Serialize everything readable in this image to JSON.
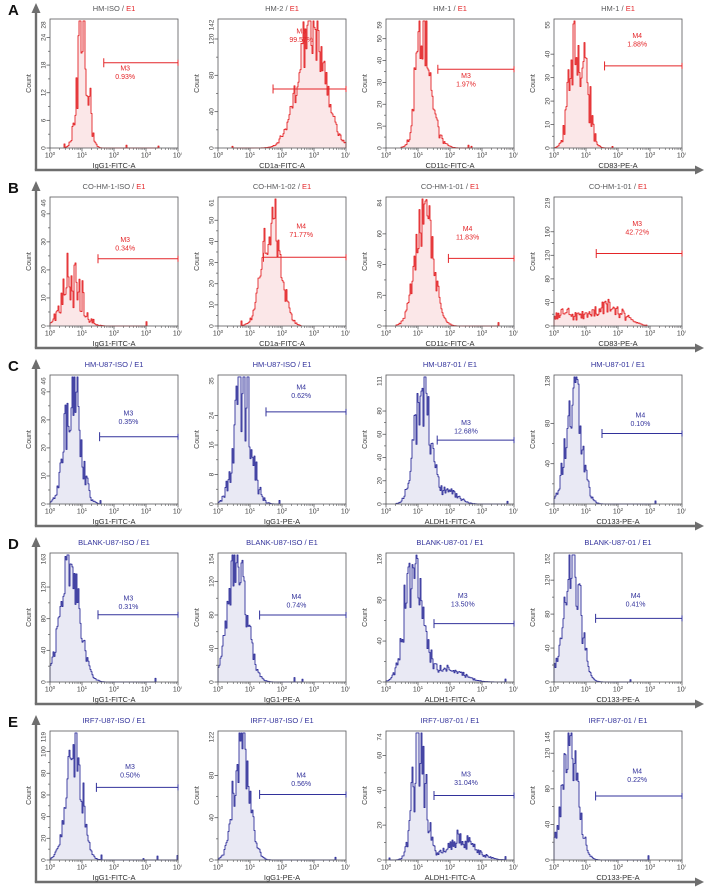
{
  "figure": {
    "row_letters": [
      "A",
      "B",
      "C",
      "D",
      "E"
    ]
  },
  "colors": {
    "red_stroke": "#e42528",
    "red_fill": "#fbe7e8",
    "red_title_name": "#58595b",
    "navy_stroke": "#32329b",
    "navy_fill": "#e9e9f4",
    "panel_frame": "#58595b",
    "row_axis": "#6e6e6e",
    "tick_text": "#3f3f3f"
  },
  "chart_data": {
    "type": "bar",
    "subtype": "flow-cytometry-histogram-grid",
    "title": "Flow cytometry histograms, 5 rows (A-E) x 4 panels",
    "x_scale": "log10",
    "x_range_log10": [
      0,
      4
    ],
    "x_tick_labels": [
      "10^0",
      "10^1",
      "10^2",
      "10^3",
      "10^4"
    ],
    "y_axis_label": "Count",
    "grid": false,
    "rows": [
      {
        "letter": "A",
        "color": "red",
        "panels": [
          {
            "title": "HM-ISO",
            "title_suffix": "E1",
            "x_label": "IgG1-FITC-A",
            "y_max": 28,
            "y_ticks": [
              0,
              6,
              12,
              18,
              24
            ],
            "gate": {
              "name": "M3",
              "percent": "0.93%",
              "level": 18.5,
              "from_log10": 1.68,
              "to_log10": 4,
              "label_x_log10": 2.35,
              "label_y": 16.8
            },
            "distribution": {
              "components": [
                {
                  "c": 1.02,
                  "s": 0.16,
                  "h": 25
                }
              ],
              "noise": 0.45,
              "seed": 7919
            }
          },
          {
            "title": "HM-2",
            "title_suffix": "E1",
            "x_label": "CD1a-FITC-A",
            "y_max": 142,
            "y_ticks": [
              0,
              40,
              80,
              120
            ],
            "gate": {
              "name": "M3",
              "percent": "99.57%",
              "level": 65,
              "from_log10": 1.72,
              "to_log10": 4,
              "label_x_log10": 2.6,
              "label_y": 126
            },
            "distribution": {
              "components": [
                {
                  "c": 2.92,
                  "s": 0.42,
                  "h": 128
                }
              ],
              "noise": 0.22,
              "seed": 15838
            }
          },
          {
            "title": "HM-1",
            "title_suffix": "E1",
            "x_label": "CD11c-FITC-A",
            "y_max": 59,
            "y_ticks": [
              0,
              10,
              20,
              30,
              40,
              50
            ],
            "gate": {
              "name": "M3",
              "percent": "1.97%",
              "level": 36,
              "from_log10": 1.62,
              "to_log10": 4,
              "label_x_log10": 2.5,
              "label_y": 32
            },
            "distribution": {
              "components": [
                {
                  "c": 1.12,
                  "s": 0.17,
                  "h": 52
                },
                {
                  "c": 1.3,
                  "s": 0.28,
                  "h": 16
                }
              ],
              "noise": 0.4,
              "seed": 23757
            }
          },
          {
            "title": "HM-1",
            "title_suffix": "E1",
            "x_label": "CD83-PE-A",
            "y_max": 55,
            "y_ticks": [
              0,
              10,
              20,
              30,
              40
            ],
            "gate": {
              "name": "M4",
              "percent": "1.88%",
              "level": 35,
              "from_log10": 1.58,
              "to_log10": 4,
              "label_x_log10": 2.6,
              "label_y": 47
            },
            "distribution": {
              "components": [
                {
                  "c": 0.62,
                  "s": 0.17,
                  "h": 46
                },
                {
                  "c": 0.95,
                  "s": 0.18,
                  "h": 25
                }
              ],
              "noise": 0.5,
              "seed": 31676
            }
          }
        ]
      },
      {
        "letter": "B",
        "color": "red",
        "panels": [
          {
            "title": "CO-HM-1-ISO",
            "title_suffix": "E1",
            "x_label": "IgG1-FITC-A",
            "y_max": 46,
            "y_ticks": [
              0,
              10,
              20,
              30,
              40
            ],
            "gate": {
              "name": "M3",
              "percent": "0.34%",
              "level": 24,
              "from_log10": 1.5,
              "to_log10": 4,
              "label_x_log10": 2.35,
              "label_y": 30
            },
            "distribution": {
              "components": [
                {
                  "c": 0.68,
                  "s": 0.3,
                  "h": 16
                }
              ],
              "noise": 0.6,
              "seed": 39595
            }
          },
          {
            "title": "CO-HM-1-02",
            "title_suffix": "E1",
            "x_label": "CD1a-FITC-A",
            "y_max": 61,
            "y_ticks": [
              0,
              10,
              20,
              30,
              40,
              50
            ],
            "gate": {
              "name": "M4",
              "percent": "71.77%",
              "level": 32.5,
              "from_log10": 1.42,
              "to_log10": 4,
              "label_x_log10": 2.6,
              "label_y": 46
            },
            "distribution": {
              "components": [
                {
                  "c": 1.68,
                  "s": 0.28,
                  "h": 53
                }
              ],
              "noise": 0.3,
              "seed": 47514
            }
          },
          {
            "title": "CO-HM-1-01",
            "title_suffix": "E1",
            "x_label": "CD11c-FITC-A",
            "y_max": 84,
            "y_ticks": [
              0,
              20,
              40,
              60
            ],
            "gate": {
              "name": "M4",
              "percent": "11.83%",
              "level": 44,
              "from_log10": 1.95,
              "to_log10": 4,
              "label_x_log10": 2.55,
              "label_y": 62
            },
            "distribution": {
              "components": [
                {
                  "c": 1.2,
                  "s": 0.28,
                  "h": 72
                }
              ],
              "noise": 0.28,
              "seed": 55433
            }
          },
          {
            "title": "CO-HM-1-01",
            "title_suffix": "E1",
            "x_label": "CD83-PE-A",
            "y_max": 219,
            "y_ticks": [
              0,
              40,
              80,
              120,
              160
            ],
            "gate": {
              "name": "M3",
              "percent": "42.72%",
              "level": 123,
              "from_log10": 1.32,
              "to_log10": 4,
              "label_x_log10": 2.6,
              "label_y": 170
            },
            "distribution": {
              "components": [
                {
                  "c": 0.4,
                  "s": 0.5,
                  "h": 20
                },
                {
                  "c": 1.75,
                  "s": 0.45,
                  "h": 30
                }
              ],
              "noise": 0.5,
              "seed": 63352
            }
          }
        ]
      },
      {
        "letter": "C",
        "color": "navy",
        "panels": [
          {
            "title": "HM-U87-ISO",
            "title_suffix": "E1",
            "x_label": "IgG1-FITC-A",
            "y_max": 46,
            "y_ticks": [
              0,
              10,
              20,
              30,
              40
            ],
            "gate": {
              "name": "M3",
              "percent": "0.35%",
              "level": 24,
              "from_log10": 1.55,
              "to_log10": 4,
              "label_x_log10": 2.45,
              "label_y": 31.5
            },
            "distribution": {
              "components": [
                {
                  "c": 0.72,
                  "s": 0.24,
                  "h": 40
                }
              ],
              "noise": 0.45,
              "seed": 71271
            }
          },
          {
            "title": "HM-U87-ISO",
            "title_suffix": "E1",
            "x_label": "IgG1-PE-A",
            "y_max": 35,
            "y_ticks": [
              0,
              8,
              16,
              24
            ],
            "gate": {
              "name": "M4",
              "percent": "0.62%",
              "level": 25,
              "from_log10": 1.5,
              "to_log10": 4,
              "label_x_log10": 2.6,
              "label_y": 31
            },
            "distribution": {
              "components": [
                {
                  "c": 0.78,
                  "s": 0.26,
                  "h": 30
                }
              ],
              "noise": 0.5,
              "seed": 79190
            }
          },
          {
            "title": "HM-U87-01",
            "title_suffix": "E1",
            "x_label": "ALDH1-FITC-A",
            "y_max": 111,
            "y_ticks": [
              0,
              20,
              40,
              60,
              80
            ],
            "gate": {
              "name": "M3",
              "percent": "12.68%",
              "level": 55,
              "from_log10": 1.6,
              "to_log10": 4,
              "label_x_log10": 2.5,
              "label_y": 68
            },
            "distribution": {
              "components": [
                {
                  "c": 1.15,
                  "s": 0.25,
                  "h": 100
                },
                {
                  "c": 2.0,
                  "s": 0.28,
                  "h": 10
                }
              ],
              "noise": 0.35,
              "seed": 87109
            }
          },
          {
            "title": "HM-U87-01",
            "title_suffix": "E1",
            "x_label": "CD133-PE-A",
            "y_max": 128,
            "y_ticks": [
              0,
              40,
              80
            ],
            "gate": {
              "name": "M4",
              "percent": "0.10%",
              "level": 70,
              "from_log10": 1.5,
              "to_log10": 4,
              "label_x_log10": 2.7,
              "label_y": 86
            },
            "distribution": {
              "components": [
                {
                  "c": 0.62,
                  "s": 0.24,
                  "h": 112
                }
              ],
              "noise": 0.3,
              "seed": 95028
            }
          }
        ]
      },
      {
        "letter": "D",
        "color": "navy",
        "panels": [
          {
            "title": "BLANK-U87-ISO",
            "title_suffix": "E1",
            "x_label": "IgG1-FITC-A",
            "y_max": 163,
            "y_ticks": [
              0,
              40,
              80,
              120
            ],
            "gate": {
              "name": "M3",
              "percent": "0.31%",
              "level": 85,
              "from_log10": 1.5,
              "to_log10": 4,
              "label_x_log10": 2.45,
              "label_y": 103
            },
            "distribution": {
              "components": [
                {
                  "c": 0.62,
                  "s": 0.3,
                  "h": 146
                }
              ],
              "noise": 0.22,
              "seed": 102947
            }
          },
          {
            "title": "BLANK-U87-ISO",
            "title_suffix": "E1",
            "x_label": "IgG1-PE-A",
            "y_max": 154,
            "y_ticks": [
              0,
              40,
              80,
              120
            ],
            "gate": {
              "name": "M4",
              "percent": "0.74%",
              "level": 80,
              "from_log10": 1.3,
              "to_log10": 4,
              "label_x_log10": 2.45,
              "label_y": 99
            },
            "distribution": {
              "components": [
                {
                  "c": 0.6,
                  "s": 0.3,
                  "h": 136
                }
              ],
              "noise": 0.25,
              "seed": 110866
            }
          },
          {
            "title": "BLANK-U87-01",
            "title_suffix": "E1",
            "x_label": "ALDH1-FITC-A",
            "y_max": 126,
            "y_ticks": [
              0,
              40,
              80
            ],
            "gate": {
              "name": "M3",
              "percent": "13.50%",
              "level": 57,
              "from_log10": 1.5,
              "to_log10": 4,
              "label_x_log10": 2.4,
              "label_y": 82
            },
            "distribution": {
              "components": [
                {
                  "c": 0.88,
                  "s": 0.28,
                  "h": 110
                },
                {
                  "c": 1.95,
                  "s": 0.45,
                  "h": 13
                }
              ],
              "noise": 0.3,
              "seed": 118785
            }
          },
          {
            "title": "BLANK-U87-01",
            "title_suffix": "E1",
            "x_label": "CD133-PE-A",
            "y_max": 152,
            "y_ticks": [
              0,
              40,
              80,
              120
            ],
            "gate": {
              "name": "M4",
              "percent": "0.41%",
              "level": 75,
              "from_log10": 1.3,
              "to_log10": 4,
              "label_x_log10": 2.55,
              "label_y": 99
            },
            "distribution": {
              "components": [
                {
                  "c": 0.55,
                  "s": 0.26,
                  "h": 135
                }
              ],
              "noise": 0.28,
              "seed": 126704
            }
          }
        ]
      },
      {
        "letter": "E",
        "color": "navy",
        "panels": [
          {
            "title": "IRF7-U87-ISO",
            "title_suffix": "E1",
            "x_label": "IgG1-FITC-A",
            "y_max": 119,
            "y_ticks": [
              0,
              20,
              40,
              60,
              80,
              100
            ],
            "gate": {
              "name": "M3",
              "percent": "0.50%",
              "level": 67,
              "from_log10": 1.45,
              "to_log10": 4,
              "label_x_log10": 2.5,
              "label_y": 84
            },
            "distribution": {
              "components": [
                {
                  "c": 0.75,
                  "s": 0.24,
                  "h": 106
                }
              ],
              "noise": 0.28,
              "seed": 134623
            }
          },
          {
            "title": "IRF7-U87-ISO",
            "title_suffix": "E1",
            "x_label": "IgG1-PE-A",
            "y_max": 122,
            "y_ticks": [
              0,
              40,
              80
            ],
            "gate": {
              "name": "M4",
              "percent": "0.56%",
              "level": 62,
              "from_log10": 1.3,
              "to_log10": 4,
              "label_x_log10": 2.6,
              "label_y": 78
            },
            "distribution": {
              "components": [
                {
                  "c": 0.75,
                  "s": 0.24,
                  "h": 110
                }
              ],
              "noise": 0.28,
              "seed": 142542
            }
          },
          {
            "title": "IRF7-U87-01",
            "title_suffix": "E1",
            "x_label": "ALDH1-FITC-A",
            "y_max": 74,
            "y_ticks": [
              0,
              20,
              40,
              60
            ],
            "gate": {
              "name": "M3",
              "percent": "31.04%",
              "level": 37,
              "from_log10": 1.5,
              "to_log10": 4,
              "label_x_log10": 2.5,
              "label_y": 48
            },
            "distribution": {
              "components": [
                {
                  "c": 1.05,
                  "s": 0.2,
                  "h": 62
                },
                {
                  "c": 2.35,
                  "s": 0.45,
                  "h": 11
                }
              ],
              "noise": 0.4,
              "seed": 150461
            }
          },
          {
            "title": "IRF7-U87-01",
            "title_suffix": "E1",
            "x_label": "CD133-PE-A",
            "y_max": 145,
            "y_ticks": [
              0,
              40,
              80,
              120
            ],
            "gate": {
              "name": "M4",
              "percent": "0.22%",
              "level": 72,
              "from_log10": 1.3,
              "to_log10": 4,
              "label_x_log10": 2.6,
              "label_y": 97
            },
            "distribution": {
              "components": [
                {
                  "c": 0.5,
                  "s": 0.25,
                  "h": 132
                }
              ],
              "noise": 0.28,
              "seed": 158380
            }
          }
        ]
      }
    ]
  }
}
